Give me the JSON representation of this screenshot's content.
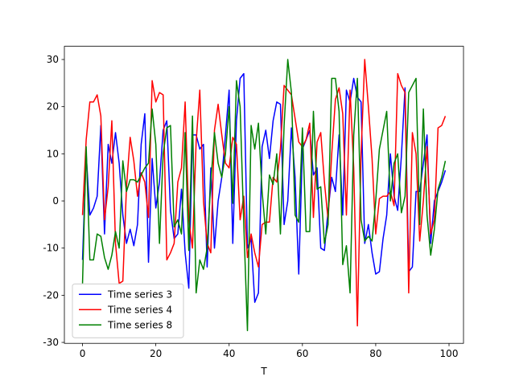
{
  "chart_data": {
    "type": "line",
    "xlabel": "T",
    "x": [
      0,
      1,
      2,
      3,
      4,
      5,
      6,
      7,
      8,
      9,
      10,
      11,
      12,
      13,
      14,
      15,
      16,
      17,
      18,
      19,
      20,
      21,
      22,
      23,
      24,
      25,
      26,
      27,
      28,
      29,
      30,
      31,
      32,
      33,
      34,
      35,
      36,
      37,
      38,
      39,
      40,
      41,
      42,
      43,
      44,
      45,
      46,
      47,
      48,
      49,
      50,
      51,
      52,
      53,
      54,
      55,
      56,
      57,
      58,
      59,
      60,
      61,
      62,
      63,
      64,
      65,
      66,
      67,
      68,
      69,
      70,
      71,
      72,
      73,
      74,
      75,
      76,
      77,
      78,
      79,
      80,
      81,
      82,
      83,
      84,
      85,
      86,
      87,
      88,
      89,
      90,
      91,
      92,
      93,
      94,
      95,
      96,
      97,
      98,
      99
    ],
    "series": [
      {
        "name": "Time series 3",
        "color": "#0000ff",
        "values": [
          -12.5,
          10,
          -3,
          -1.5,
          1,
          16,
          -7,
          12,
          8,
          14.5,
          8,
          -3,
          -9,
          -6,
          -9.5,
          -5,
          12,
          18.5,
          -13,
          9,
          -1.5,
          4,
          15,
          17,
          -2,
          -8,
          -7,
          2.5,
          -11,
          -18.5,
          14,
          14,
          11,
          12,
          -14,
          7,
          -10,
          0,
          5,
          14,
          23.5,
          -9,
          17,
          26,
          27,
          -10,
          -8,
          -21.5,
          -19.5,
          11.5,
          15,
          9,
          17,
          21,
          20.5,
          -5,
          0,
          15.5,
          5,
          -15.5,
          11,
          13,
          15,
          5.5,
          7,
          -10,
          -10.5,
          -2,
          5,
          2,
          14,
          -3,
          23.5,
          21,
          26,
          22,
          21,
          -9,
          -5,
          -11,
          -15.5,
          -15,
          -8,
          -3,
          10,
          1,
          -2,
          9.5,
          24,
          -15,
          -14,
          2,
          2,
          8,
          14,
          -9,
          0,
          2,
          4,
          6.5
        ]
      },
      {
        "name": "Time series 4",
        "color": "#ff0000",
        "values": [
          -3,
          13,
          21,
          21,
          22.5,
          18,
          -4,
          3,
          17,
          -9,
          -17.5,
          -17,
          3,
          13.5,
          8.5,
          1,
          6,
          4,
          -3.5,
          25.5,
          21,
          23,
          22.5,
          -12.5,
          -11,
          -9,
          4,
          7,
          21,
          -4,
          -10,
          12.5,
          23.5,
          0,
          -9,
          -11,
          15,
          20.5,
          14,
          8,
          7,
          13.5,
          12,
          -4,
          1,
          -12,
          -7,
          -11,
          -14,
          -5,
          -4.5,
          -4.5,
          5,
          4,
          11,
          24.5,
          23.5,
          22.5,
          17.5,
          12.5,
          11.5,
          13,
          16.5,
          -3.5,
          12.5,
          14.5,
          4,
          -4,
          10,
          21.5,
          24,
          18.5,
          -3,
          23.5,
          7,
          -26.5,
          10,
          30,
          20,
          9,
          -7,
          0.5,
          1,
          1,
          2,
          -1,
          27,
          24.5,
          23,
          -19.5,
          14.5,
          10,
          -8.5,
          0,
          11.5,
          -7,
          -4,
          15.5,
          16,
          18
        ]
      },
      {
        "name": "Time series 8",
        "color": "#008000",
        "values": [
          -17.5,
          11.5,
          -12.5,
          -12.5,
          -7,
          -7.5,
          -12,
          -14.5,
          -11.5,
          -6.5,
          -10,
          8.5,
          2,
          4.5,
          4.5,
          4,
          5.5,
          7,
          8,
          19.5,
          12,
          -9,
          10,
          15.5,
          16,
          -5.5,
          -4,
          -7,
          14.5,
          -10.5,
          18,
          -19.5,
          -12.5,
          -14.5,
          -10,
          4,
          14.5,
          8,
          5,
          10,
          20,
          -0.5,
          25.5,
          20,
          -5,
          -27.5,
          16,
          11,
          16.5,
          2,
          -7,
          5.5,
          3.5,
          10,
          -7,
          16,
          30,
          23,
          -3,
          -4.5,
          15.5,
          -6.5,
          -6.5,
          19,
          2.5,
          3,
          -9,
          -5,
          26,
          26,
          19,
          -13.5,
          -9.5,
          -19.5,
          14,
          26,
          -4,
          -8.5,
          -7.5,
          -8.5,
          0,
          11,
          15,
          19,
          0,
          8,
          10,
          -2.5,
          1,
          23,
          24.5,
          26,
          -5,
          19.5,
          -3,
          -11.5,
          -6,
          2.5,
          5,
          8.5
        ]
      }
    ],
    "xlim": [
      -4.95,
      103.95
    ],
    "ylim": [
      -30.2,
      32.8
    ],
    "xticks": [
      0,
      20,
      40,
      60,
      80,
      100
    ],
    "yticks": [
      -30,
      -20,
      -10,
      0,
      10,
      20,
      30
    ],
    "legend": "lower left"
  }
}
